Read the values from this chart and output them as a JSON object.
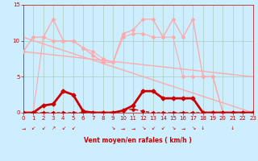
{
  "bg_color": "#cceeff",
  "grid_color": "#aaccbb",
  "xlabel": "Vent moyen/en rafales ( km/h )",
  "xlim": [
    0,
    23
  ],
  "ylim": [
    -0.5,
    15
  ],
  "yticks": [
    0,
    5,
    10,
    15
  ],
  "xticks": [
    0,
    1,
    2,
    3,
    4,
    5,
    6,
    7,
    8,
    9,
    10,
    11,
    12,
    13,
    14,
    15,
    16,
    17,
    18,
    19,
    20,
    21,
    22,
    23
  ],
  "line_pink_jagged1_x": [
    0,
    1,
    2,
    3,
    4,
    5,
    6,
    7,
    8,
    9,
    10,
    11,
    12,
    13,
    14,
    15,
    16,
    17,
    18,
    19,
    20,
    21,
    22,
    23
  ],
  "line_pink_jagged1_y": [
    8.5,
    10.5,
    10.5,
    13,
    10,
    10,
    9,
    8,
    7,
    7,
    11,
    11.5,
    13,
    13,
    10.5,
    13,
    10.5,
    13,
    5,
    5,
    0,
    0,
    0,
    0
  ],
  "line_pink_jagged2_x": [
    0,
    1,
    2,
    3,
    4,
    5,
    6,
    7,
    8,
    9,
    10,
    11,
    12,
    13,
    14,
    15,
    16,
    17,
    18,
    19,
    20,
    21,
    22,
    23
  ],
  "line_pink_jagged2_y": [
    0,
    0,
    10.5,
    10,
    10,
    10,
    9,
    8.5,
    7.5,
    7,
    10.5,
    11,
    11,
    10.5,
    10.5,
    10.5,
    5,
    5,
    5,
    5,
    0,
    0,
    0,
    0
  ],
  "trend1_x": [
    0,
    23
  ],
  "trend1_y": [
    10.5,
    0
  ],
  "trend2_x": [
    0,
    23
  ],
  "trend2_y": [
    8.5,
    5.0
  ],
  "trend3_x": [
    0,
    23
  ],
  "trend3_y": [
    0.0,
    0.0
  ],
  "red_freq_x": [
    0,
    1,
    2,
    3,
    4,
    5,
    6,
    7,
    8,
    9,
    10,
    11,
    12,
    13,
    14,
    15,
    16,
    17,
    18,
    19,
    20,
    21,
    22,
    23
  ],
  "red_freq_y": [
    0,
    0,
    1,
    1.2,
    3,
    2.5,
    0.2,
    0,
    0,
    0,
    0.3,
    1,
    3,
    3,
    2,
    2,
    2,
    2,
    0,
    0,
    0,
    0,
    0,
    0
  ],
  "red_base_x": [
    0,
    1,
    2,
    3,
    4,
    5,
    6,
    7,
    8,
    9,
    10,
    11,
    12,
    13,
    14,
    15,
    16,
    17,
    18,
    19,
    20,
    21,
    22,
    23
  ],
  "red_base_y": [
    0,
    0,
    0,
    0,
    0,
    0,
    0,
    0,
    0,
    0,
    0.3,
    0.5,
    0.2,
    0,
    0,
    0,
    0,
    0,
    0,
    0,
    0,
    0,
    0,
    0
  ],
  "arrows": [
    {
      "x": 0,
      "char": "→"
    },
    {
      "x": 1,
      "char": "↙"
    },
    {
      "x": 2,
      "char": "↙"
    },
    {
      "x": 3,
      "char": "↗"
    },
    {
      "x": 4,
      "char": "↙"
    },
    {
      "x": 5,
      "char": "↙"
    },
    {
      "x": 9,
      "char": "↘"
    },
    {
      "x": 10,
      "char": "→"
    },
    {
      "x": 11,
      "char": "→"
    },
    {
      "x": 12,
      "char": "↘"
    },
    {
      "x": 13,
      "char": "↙"
    },
    {
      "x": 14,
      "char": "↙"
    },
    {
      "x": 15,
      "char": "↘"
    },
    {
      "x": 16,
      "char": "→"
    },
    {
      "x": 17,
      "char": "↘"
    },
    {
      "x": 18,
      "char": "↓"
    },
    {
      "x": 21,
      "char": "↓"
    }
  ]
}
